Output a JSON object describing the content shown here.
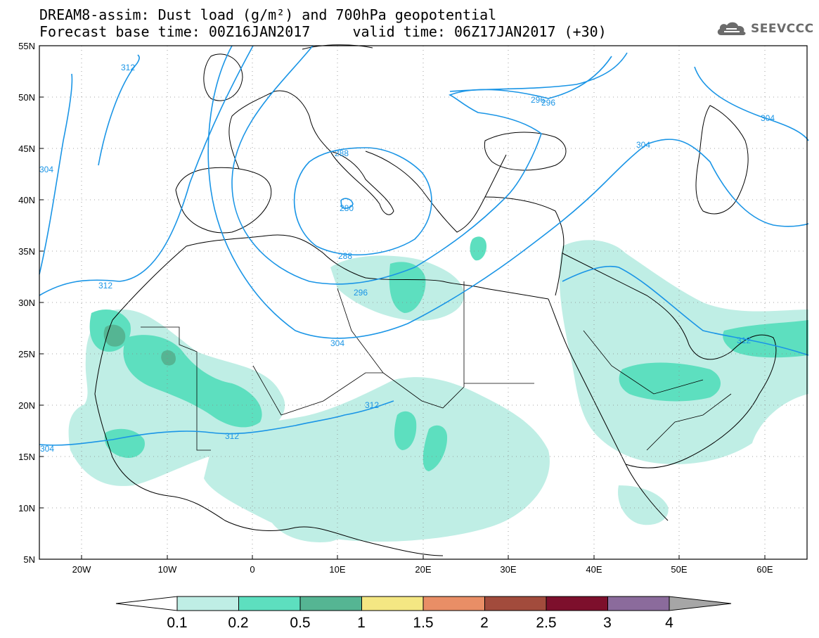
{
  "title": {
    "line1": "DREAM8-assim: Dust load (g/m²) and 700hPa geopotential",
    "line2": "Forecast base time: 00Z16JAN2017     valid time: 06Z17JAN2017 (+30)"
  },
  "brand": {
    "name": "SEEVCCC",
    "icon": "cloud-icon"
  },
  "map": {
    "lat_labels": [
      "55N",
      "50N",
      "45N",
      "40N",
      "35N",
      "30N",
      "25N",
      "20N",
      "15N",
      "10N",
      "5N"
    ],
    "lon_labels": [
      "20W",
      "10W",
      "0",
      "10E",
      "20E",
      "30E",
      "40E",
      "50E",
      "60E"
    ],
    "contour_labels": [
      "312",
      "304",
      "288",
      "280",
      "296",
      "304",
      "296",
      "304",
      "288",
      "296",
      "304",
      "312",
      "312",
      "312",
      "312",
      "304"
    ],
    "dust_color": "#bfeee5",
    "contour_color": "#1a95e6"
  },
  "colorbar": {
    "labels": [
      "0.1",
      "0.2",
      "0.5",
      "1",
      "1.5",
      "2",
      "2.5",
      "3",
      "4"
    ],
    "colors": [
      "#bfeee5",
      "#5ddfbf",
      "#55b593",
      "#f4e783",
      "#e98e66",
      "#a24b3c",
      "#7d0f2c",
      "#8b6b9c"
    ],
    "under_color": "#ffffff",
    "over_color": "#a6a6a6"
  }
}
